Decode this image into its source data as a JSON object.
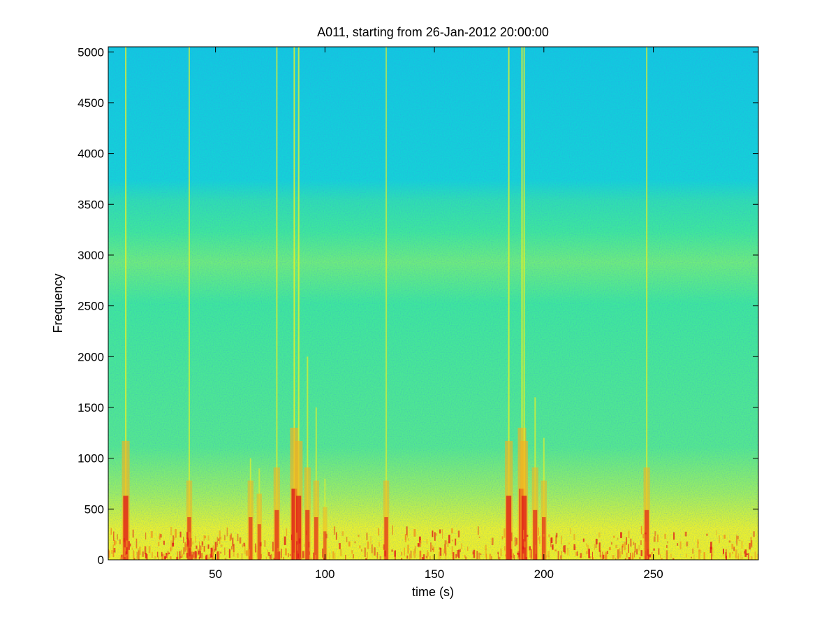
{
  "chart_data": {
    "type": "heatmap",
    "title": "A011, starting from 26-Jan-2012 20:00:00",
    "xlabel": "time (s)",
    "ylabel": "Frequency",
    "xlim": [
      1,
      298
    ],
    "ylim": [
      0,
      5050
    ],
    "x_ticks": [
      50,
      100,
      150,
      200,
      250
    ],
    "y_ticks": [
      0,
      500,
      1000,
      1500,
      2000,
      2500,
      3000,
      3500,
      4000,
      4500,
      5000
    ],
    "grid": false,
    "legend": "none",
    "colormap": "jet",
    "colors": {
      "low": "#00c8dc",
      "mid": "#2ee8a0",
      "high": "#f0f020",
      "peak": "#e01818"
    },
    "bands": [
      {
        "from": 0,
        "to": 500,
        "level": "high"
      },
      {
        "from": 500,
        "to": 800,
        "level": "mid-high"
      },
      {
        "from": 800,
        "to": 3500,
        "level": "mid"
      },
      {
        "from": 2600,
        "to": 3100,
        "level": "mid-high"
      },
      {
        "from": 3600,
        "to": 5050,
        "level": "low"
      }
    ],
    "transients": [
      {
        "t": 9,
        "max_freq": 5050,
        "strength": 0.9
      },
      {
        "t": 38,
        "max_freq": 5050,
        "strength": 0.6
      },
      {
        "t": 66,
        "max_freq": 1000,
        "strength": 0.6
      },
      {
        "t": 70,
        "max_freq": 900,
        "strength": 0.5
      },
      {
        "t": 78,
        "max_freq": 5050,
        "strength": 0.7
      },
      {
        "t": 86,
        "max_freq": 5050,
        "strength": 1.0
      },
      {
        "t": 88,
        "max_freq": 5050,
        "strength": 0.9
      },
      {
        "t": 92,
        "max_freq": 2000,
        "strength": 0.7
      },
      {
        "t": 96,
        "max_freq": 1500,
        "strength": 0.6
      },
      {
        "t": 100,
        "max_freq": 800,
        "strength": 0.4
      },
      {
        "t": 128,
        "max_freq": 5050,
        "strength": 0.6
      },
      {
        "t": 184,
        "max_freq": 5050,
        "strength": 0.9
      },
      {
        "t": 190,
        "max_freq": 5050,
        "strength": 1.0
      },
      {
        "t": 191,
        "max_freq": 5050,
        "strength": 0.9
      },
      {
        "t": 196,
        "max_freq": 1600,
        "strength": 0.7
      },
      {
        "t": 200,
        "max_freq": 1200,
        "strength": 0.6
      },
      {
        "t": 247,
        "max_freq": 5050,
        "strength": 0.7
      }
    ]
  }
}
